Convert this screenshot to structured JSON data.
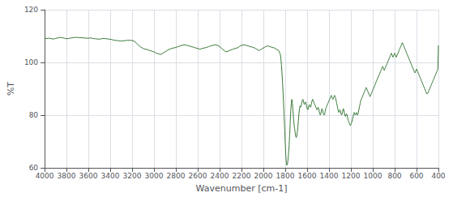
{
  "chart_data": {
    "type": "line",
    "xlabel": "Wavenumber [cm-1]",
    "ylabel": "%T",
    "color": "#3a7a3a",
    "xlim": [
      4000,
      400
    ],
    "ylim": [
      60,
      120
    ],
    "xticks": [
      4000,
      3800,
      3600,
      3400,
      3200,
      3000,
      2800,
      2600,
      2400,
      2200,
      2000,
      1800,
      1600,
      1400,
      1200,
      1000,
      800,
      600,
      400
    ],
    "yticks": [
      60,
      80,
      100,
      120
    ],
    "grid": true,
    "x": [
      4000,
      3980,
      3960,
      3940,
      3920,
      3900,
      3880,
      3860,
      3840,
      3820,
      3800,
      3780,
      3760,
      3740,
      3720,
      3700,
      3680,
      3660,
      3640,
      3620,
      3600,
      3580,
      3560,
      3540,
      3520,
      3500,
      3480,
      3460,
      3440,
      3420,
      3400,
      3380,
      3360,
      3340,
      3320,
      3300,
      3280,
      3260,
      3240,
      3220,
      3200,
      3180,
      3160,
      3140,
      3120,
      3100,
      3080,
      3060,
      3040,
      3020,
      3000,
      2980,
      2960,
      2940,
      2920,
      2900,
      2880,
      2860,
      2840,
      2820,
      2800,
      2780,
      2760,
      2740,
      2720,
      2700,
      2680,
      2660,
      2640,
      2620,
      2600,
      2580,
      2560,
      2540,
      2520,
      2500,
      2480,
      2460,
      2440,
      2420,
      2400,
      2380,
      2360,
      2340,
      2320,
      2300,
      2280,
      2260,
      2240,
      2220,
      2200,
      2180,
      2160,
      2140,
      2120,
      2100,
      2080,
      2060,
      2040,
      2020,
      2000,
      1980,
      1960,
      1940,
      1920,
      1900,
      1880,
      1860,
      1845,
      1840,
      1835,
      1830,
      1825,
      1820,
      1815,
      1810,
      1805,
      1800,
      1795,
      1790,
      1785,
      1780,
      1775,
      1770,
      1765,
      1760,
      1755,
      1750,
      1745,
      1740,
      1735,
      1730,
      1725,
      1720,
      1715,
      1710,
      1705,
      1700,
      1695,
      1690,
      1685,
      1680,
      1675,
      1670,
      1665,
      1660,
      1655,
      1650,
      1645,
      1640,
      1635,
      1630,
      1625,
      1620,
      1615,
      1610,
      1605,
      1600,
      1595,
      1590,
      1585,
      1580,
      1575,
      1570,
      1565,
      1560,
      1555,
      1550,
      1545,
      1540,
      1535,
      1530,
      1525,
      1520,
      1515,
      1510,
      1505,
      1500,
      1495,
      1490,
      1485,
      1480,
      1475,
      1470,
      1465,
      1460,
      1455,
      1450,
      1445,
      1440,
      1435,
      1430,
      1425,
      1420,
      1415,
      1410,
      1405,
      1400,
      1395,
      1390,
      1385,
      1380,
      1375,
      1370,
      1365,
      1360,
      1355,
      1350,
      1345,
      1340,
      1335,
      1330,
      1325,
      1320,
      1315,
      1310,
      1305,
      1300,
      1295,
      1290,
      1285,
      1280,
      1275,
      1270,
      1265,
      1260,
      1255,
      1250,
      1245,
      1240,
      1235,
      1230,
      1225,
      1220,
      1215,
      1210,
      1205,
      1200,
      1195,
      1190,
      1185,
      1180,
      1175,
      1170,
      1165,
      1160,
      1155,
      1150,
      1145,
      1140,
      1135,
      1130,
      1125,
      1120,
      1115,
      1110,
      1105,
      1100,
      1095,
      1090,
      1085,
      1080,
      1075,
      1070,
      1065,
      1060,
      1055,
      1050,
      1045,
      1040,
      1035,
      1030,
      1025,
      1020,
      1015,
      1010,
      1005,
      1000,
      995,
      990,
      985,
      980,
      975,
      970,
      965,
      960,
      955,
      950,
      945,
      940,
      935,
      930,
      925,
      920,
      915,
      910,
      905,
      900,
      895,
      890,
      885,
      880,
      875,
      870,
      865,
      860,
      855,
      850,
      845,
      840,
      835,
      830,
      825,
      820,
      815,
      810,
      805,
      800,
      795,
      790,
      785,
      780,
      775,
      770,
      765,
      760,
      755,
      750,
      745,
      740,
      735,
      730,
      725,
      720,
      715,
      710,
      705,
      700,
      695,
      690,
      685,
      680,
      675,
      670,
      665,
      660,
      655,
      650,
      645,
      640,
      635,
      630,
      625,
      620,
      615,
      610,
      605,
      600,
      595,
      590,
      585,
      580,
      575,
      570,
      565,
      560,
      555,
      550,
      545,
      540,
      535,
      530,
      525,
      520,
      515,
      510,
      505,
      500,
      495,
      490,
      485,
      480,
      475,
      470,
      465,
      460,
      455,
      450,
      445,
      440,
      435,
      430,
      425,
      420,
      415,
      410,
      405,
      400
    ],
    "values": [
      109.0,
      109.1,
      109.2,
      109.0,
      108.9,
      109.1,
      109.3,
      109.5,
      109.4,
      109.2,
      109.0,
      109.1,
      109.3,
      109.4,
      109.5,
      109.5,
      109.4,
      109.4,
      109.3,
      109.2,
      109.2,
      109.3,
      109.1,
      109.0,
      108.9,
      108.8,
      109.0,
      109.1,
      109.0,
      108.9,
      108.8,
      108.6,
      108.4,
      108.3,
      108.2,
      108.1,
      108.2,
      108.3,
      108.4,
      108.4,
      108.3,
      108.0,
      107.3,
      106.5,
      105.8,
      105.3,
      105.0,
      104.9,
      104.5,
      104.3,
      104.0,
      103.5,
      103.3,
      103.0,
      103.5,
      104.0,
      104.5,
      105.0,
      105.3,
      105.5,
      105.7,
      106.0,
      106.3,
      106.5,
      106.7,
      106.5,
      106.3,
      106.0,
      105.8,
      105.5,
      105.3,
      105.0,
      105.3,
      105.5,
      105.7,
      106.0,
      106.3,
      106.5,
      106.7,
      106.5,
      106.0,
      105.3,
      104.5,
      104.0,
      104.3,
      104.7,
      105.0,
      105.3,
      105.5,
      106.0,
      106.5,
      106.7,
      106.5,
      106.3,
      106.0,
      105.8,
      105.5,
      105.0,
      104.5,
      105.0,
      105.5,
      106.0,
      106.3,
      106.0,
      105.7,
      105.5,
      105.0,
      104.5,
      103.0,
      101.5,
      99.0,
      96.0,
      92.5,
      88.5,
      84.0,
      79.0,
      74.0,
      69.0,
      64.5,
      62.0,
      61.0,
      61.5,
      63.0,
      65.5,
      68.5,
      72.5,
      77.0,
      81.5,
      84.5,
      86.0,
      84.5,
      82.0,
      79.0,
      76.5,
      75.0,
      73.5,
      72.0,
      71.5,
      72.0,
      73.5,
      75.5,
      78.0,
      80.5,
      82.5,
      83.5,
      83.0,
      83.5,
      84.5,
      85.5,
      86.0,
      85.5,
      84.5,
      84.0,
      84.5,
      85.0,
      84.5,
      83.5,
      82.5,
      82.0,
      82.5,
      83.5,
      84.0,
      83.5,
      83.0,
      83.5,
      84.5,
      85.5,
      86.0,
      85.5,
      85.0,
      84.5,
      84.0,
      83.5,
      83.0,
      82.5,
      82.0,
      82.5,
      83.0,
      82.5,
      81.5,
      80.5,
      80.0,
      80.5,
      81.5,
      82.5,
      82.0,
      81.0,
      80.5,
      80.0,
      80.5,
      81.5,
      82.5,
      83.0,
      83.5,
      84.0,
      84.5,
      85.0,
      85.5,
      86.0,
      86.5,
      87.0,
      87.5,
      87.0,
      86.5,
      86.0,
      86.5,
      87.0,
      87.5,
      87.0,
      86.5,
      85.5,
      84.5,
      83.5,
      82.5,
      81.5,
      81.0,
      81.5,
      82.0,
      81.5,
      80.5,
      80.0,
      80.5,
      81.5,
      82.5,
      82.0,
      81.0,
      80.0,
      79.5,
      80.0,
      80.5,
      80.0,
      79.0,
      78.0,
      77.5,
      77.0,
      76.5,
      76.0,
      76.5,
      77.0,
      77.5,
      78.5,
      79.5,
      80.5,
      81.0,
      80.5,
      80.0,
      80.5,
      81.0,
      80.5,
      80.0,
      80.5,
      81.5,
      82.5,
      83.5,
      84.5,
      85.5,
      86.0,
      86.5,
      87.0,
      87.5,
      88.0,
      88.5,
      89.0,
      89.5,
      90.0,
      90.5,
      90.0,
      89.5,
      89.0,
      88.5,
      88.0,
      87.5,
      87.0,
      87.5,
      88.0,
      88.5,
      89.0,
      89.5,
      90.0,
      90.5,
      91.0,
      91.5,
      92.0,
      92.5,
      93.0,
      93.5,
      94.0,
      94.5,
      95.0,
      95.5,
      96.0,
      96.5,
      97.0,
      97.5,
      98.0,
      98.5,
      98.0,
      97.5,
      97.0,
      97.5,
      98.0,
      98.5,
      99.0,
      99.5,
      100.0,
      100.5,
      101.0,
      101.5,
      102.0,
      102.5,
      103.0,
      103.5,
      103.0,
      102.5,
      102.0,
      102.5,
      103.0,
      103.5,
      103.0,
      102.5,
      102.0,
      102.5,
      103.0,
      103.5,
      104.0,
      104.5,
      105.0,
      105.5,
      106.0,
      106.5,
      107.0,
      107.5,
      107.0,
      106.5,
      106.0,
      105.5,
      105.0,
      104.5,
      104.0,
      103.5,
      103.0,
      102.5,
      102.0,
      101.5,
      101.0,
      100.5,
      100.0,
      99.5,
      99.0,
      98.5,
      98.0,
      97.5,
      97.0,
      96.5,
      96.0,
      96.5,
      97.0,
      97.5,
      97.0,
      96.5,
      96.0,
      95.5,
      95.0,
      94.5,
      94.0,
      93.5,
      93.0,
      92.5,
      92.0,
      91.5,
      91.0,
      90.5,
      90.0,
      89.5,
      89.0,
      88.5,
      88.0,
      88.0,
      88.5,
      89.0,
      89.5,
      90.0,
      90.5,
      91.0,
      91.5,
      92.0,
      92.5,
      93.0,
      93.5,
      94.0,
      94.5,
      95.0,
      95.5,
      96.0,
      96.5,
      97.0,
      97.5,
      106.5
    ]
  }
}
